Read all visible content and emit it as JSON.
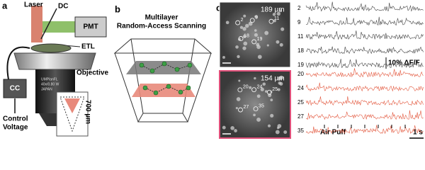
{
  "panel_a": {
    "label": "a",
    "laser": "Laser",
    "dc": "DC",
    "pmt": "PMT",
    "etl": "ETL",
    "cc": "CC",
    "objective": "Objective",
    "control_voltage": [
      "Control",
      "Voltage"
    ],
    "depth": "700 µm",
    "lens_text": [
      "UMPlanFL",
      "40x/0.80 W",
      "JAPAN"
    ]
  },
  "panel_b": {
    "label": "b",
    "title": [
      "Multilayer",
      "Random-Access Scanning"
    ]
  },
  "panel_c": {
    "label": "c",
    "images": [
      {
        "depth": "189 µm",
        "cells": [
          "2",
          "9",
          "11",
          "18",
          "19"
        ]
      },
      {
        "depth": "154 µm",
        "cells": [
          "20",
          "24",
          "25",
          "27",
          "35"
        ]
      }
    ],
    "traces": {
      "top": [
        "2",
        "9",
        "11",
        "18",
        "19"
      ],
      "bottom": [
        "20",
        "24",
        "25",
        "27",
        "35"
      ]
    },
    "scale": "10% ΔF/F",
    "stimulus": "Air Puff",
    "time": "1 s"
  }
}
